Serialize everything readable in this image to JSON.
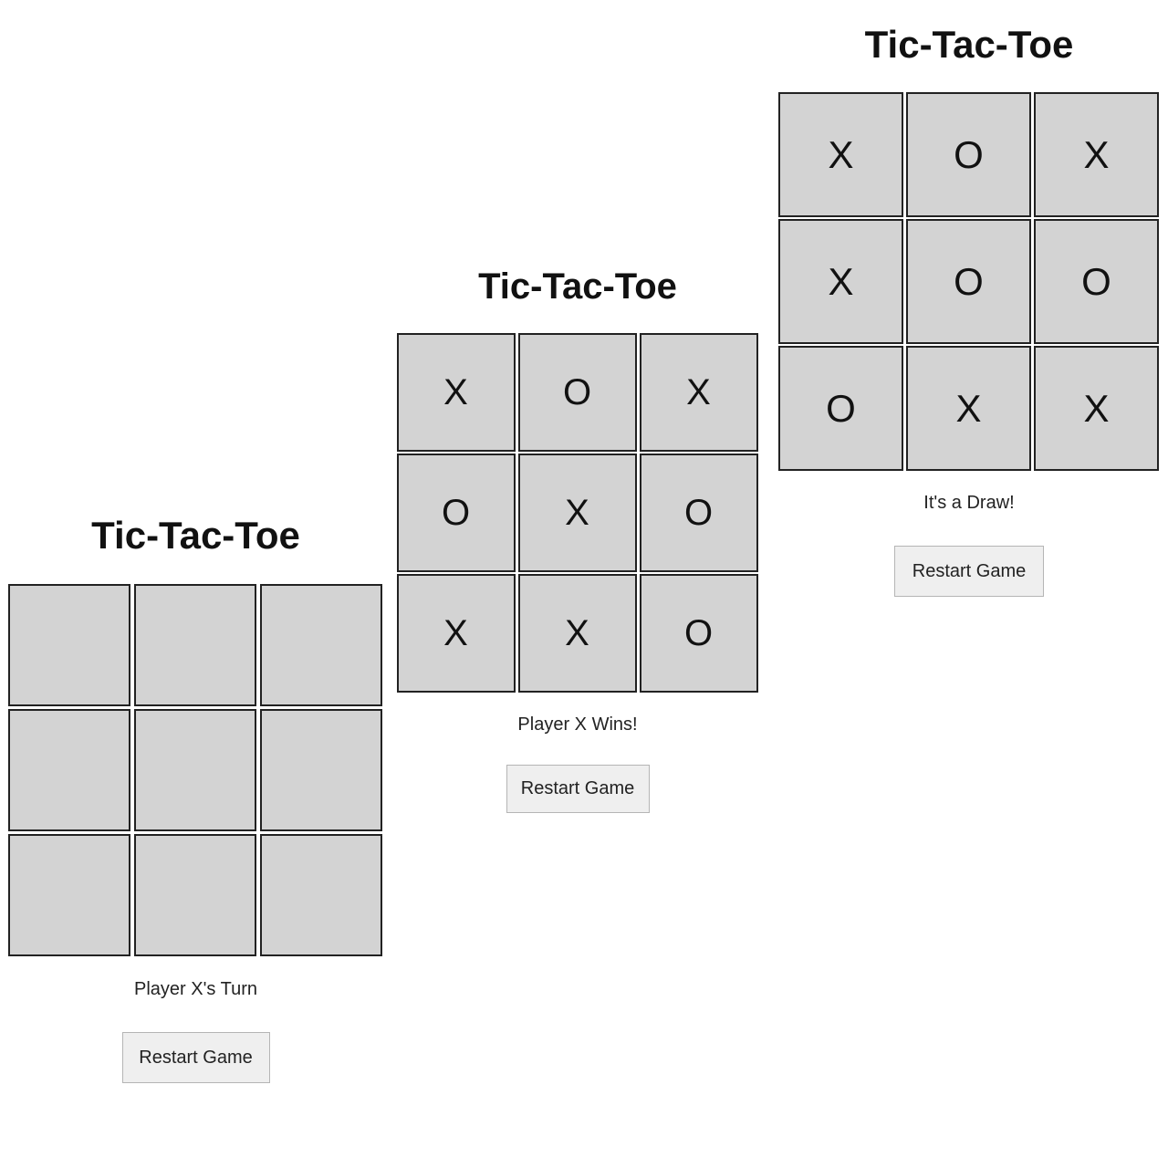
{
  "games": [
    {
      "title": "Tic-Tac-Toe",
      "cells": [
        "",
        "",
        "",
        "",
        "",
        "",
        "",
        "",
        ""
      ],
      "status": "Player X's Turn",
      "restart_label": "Restart Game"
    },
    {
      "title": "Tic-Tac-Toe",
      "cells": [
        "X",
        "O",
        "X",
        "O",
        "X",
        "O",
        "X",
        "X",
        "O"
      ],
      "status": "Player X Wins!",
      "restart_label": "Restart Game"
    },
    {
      "title": "Tic-Tac-Toe",
      "cells": [
        "X",
        "O",
        "X",
        "X",
        "O",
        "O",
        "O",
        "X",
        "X"
      ],
      "status": "It's a Draw!",
      "restart_label": "Restart Game"
    }
  ],
  "colors": {
    "background": "#ffffff",
    "cell_fill": "#d3d3d3",
    "cell_border": "#222222",
    "button_fill": "#efefef",
    "button_border": "#b5b5b5",
    "text": "#111111"
  }
}
